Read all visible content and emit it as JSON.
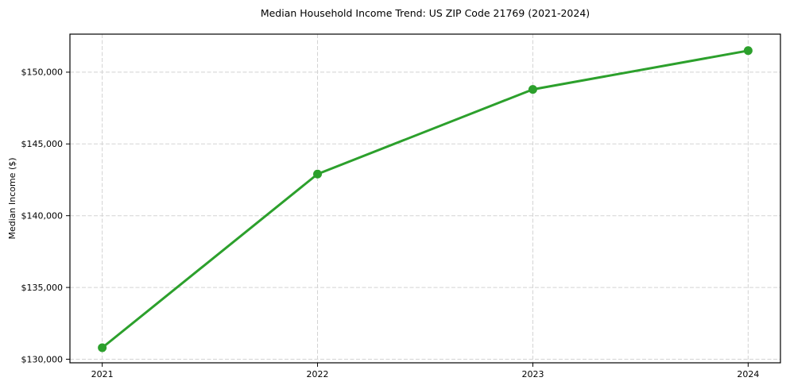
{
  "chart_data": {
    "type": "line",
    "title": "Median Household Income Trend: US ZIP Code 21769 (2021-2024)",
    "xlabel": "",
    "ylabel": "Median Income ($)",
    "x": [
      2021,
      2022,
      2023,
      2024
    ],
    "x_labels": [
      "2021",
      "2022",
      "2023",
      "2024"
    ],
    "series": [
      {
        "name": "Median Household Income",
        "values": [
          130800,
          142900,
          148800,
          151500
        ],
        "color": "#2ca02c"
      }
    ],
    "yticks": {
      "values": [
        130000,
        135000,
        140000,
        145000,
        150000
      ],
      "labels": [
        "$130,000",
        "$135,000",
        "$140,000",
        "$145,000",
        "$150,000"
      ]
    },
    "xlim": [
      2020.85,
      2024.15
    ],
    "ylim": [
      129750,
      152650
    ],
    "grid": true,
    "grid_color": "#d3d3d3",
    "axis_color": "#000000",
    "text_color": "#000000",
    "background": "#ffffff",
    "legend": "none",
    "marker": "circle"
  }
}
